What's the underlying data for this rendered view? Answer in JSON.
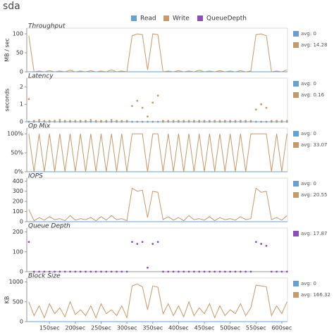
{
  "title": "sda",
  "chart_data": [
    {
      "type": "line",
      "title": "Throughput",
      "ylabel": "MB / sec",
      "xlim": [
        106,
        611
      ],
      "ylim": [
        0,
        115
      ],
      "yticks": [
        0,
        50,
        100
      ],
      "x": [
        110,
        120,
        130,
        140,
        150,
        160,
        170,
        180,
        190,
        200,
        210,
        220,
        230,
        240,
        250,
        260,
        270,
        280,
        290,
        300,
        310,
        320,
        330,
        340,
        350,
        360,
        370,
        380,
        390,
        400,
        410,
        420,
        430,
        440,
        450,
        460,
        470,
        480,
        490,
        500,
        510,
        520,
        530,
        540,
        550,
        560,
        570,
        580,
        590,
        600,
        610
      ],
      "series": [
        {
          "name": "Read",
          "color": "#6a9fd4",
          "avg_label": "avg: 0",
          "values": [
            0,
            0,
            0,
            0,
            0,
            0,
            0,
            0,
            0,
            0,
            0,
            0,
            0,
            0,
            0,
            0,
            0,
            0,
            0,
            0,
            0,
            0,
            0,
            0,
            0,
            0,
            0,
            0,
            0,
            0,
            0,
            0,
            0,
            0,
            0,
            0,
            0,
            0,
            0,
            0,
            0,
            0,
            0,
            0,
            0,
            0,
            0,
            0,
            0,
            0,
            0
          ]
        },
        {
          "name": "Write",
          "color": "#c49a6c",
          "avg_label": "avg: 14.28",
          "values": [
            95,
            0,
            2,
            0,
            3,
            0,
            2,
            0,
            4,
            0,
            2,
            0,
            3,
            0,
            2,
            0,
            5,
            0,
            2,
            0,
            95,
            100,
            98,
            5,
            100,
            98,
            0,
            2,
            0,
            3,
            0,
            2,
            0,
            4,
            0,
            2,
            0,
            3,
            0,
            2,
            0,
            3,
            0,
            2,
            98,
            100,
            95,
            0,
            2,
            0,
            5
          ]
        }
      ]
    },
    {
      "type": "scatter",
      "title": "Latency",
      "ylabel": "seconds",
      "xlim": [
        106,
        611
      ],
      "ylim": [
        0,
        2.5
      ],
      "yticks": [
        0,
        1,
        2
      ],
      "x": [
        110,
        120,
        130,
        140,
        150,
        160,
        170,
        180,
        190,
        200,
        210,
        220,
        230,
        240,
        250,
        260,
        270,
        280,
        290,
        300,
        310,
        320,
        330,
        340,
        350,
        360,
        370,
        380,
        390,
        400,
        410,
        420,
        430,
        440,
        450,
        460,
        470,
        480,
        490,
        500,
        510,
        520,
        530,
        540,
        550,
        560,
        570,
        580,
        590,
        600,
        610
      ],
      "series": [
        {
          "name": "Read",
          "color": "#6a9fd4",
          "avg_label": "avg: 0",
          "values": [
            0,
            0,
            0,
            0,
            0,
            0,
            0,
            0,
            0,
            0,
            0,
            0,
            0,
            0,
            0,
            0,
            0,
            0,
            0,
            0,
            0,
            0,
            0,
            0,
            0,
            0,
            0,
            0,
            0,
            0,
            0,
            0,
            0,
            0,
            0,
            0,
            0,
            0,
            0,
            0,
            0,
            0,
            0,
            0,
            0,
            0,
            0,
            0,
            0,
            0,
            0
          ]
        },
        {
          "name": "Write",
          "color": "#c49a6c",
          "avg_label": "avg: 0.16",
          "values": [
            1.3,
            0.05,
            0.1,
            0.05,
            0.05,
            0.05,
            0.1,
            0.05,
            0.05,
            0.05,
            0.05,
            0.05,
            0.1,
            0.05,
            0.05,
            0.05,
            0.1,
            0.05,
            0.05,
            0.05,
            0.9,
            1.2,
            0.8,
            0.3,
            1.1,
            1.5,
            0.05,
            0.05,
            0.05,
            0.05,
            0.05,
            0.05,
            0.05,
            0.05,
            0.05,
            0.05,
            0.05,
            0.05,
            0.05,
            0.05,
            0.05,
            0.05,
            0.05,
            0.05,
            0.7,
            1.0,
            0.8,
            0.05,
            0.05,
            0.05,
            0.05
          ]
        }
      ]
    },
    {
      "type": "line",
      "title": "Op Mix",
      "xlim": [
        106,
        611
      ],
      "ylim": [
        0,
        115
      ],
      "yticks": [
        {
          "value": 0,
          "label": "0%"
        },
        {
          "value": 50,
          "label": "50%"
        },
        {
          "value": 100,
          "label": "100%"
        }
      ],
      "x": [
        110,
        120,
        130,
        140,
        150,
        160,
        170,
        180,
        190,
        200,
        210,
        220,
        230,
        240,
        250,
        260,
        270,
        280,
        290,
        300,
        310,
        320,
        330,
        340,
        350,
        360,
        370,
        380,
        390,
        400,
        410,
        420,
        430,
        440,
        450,
        460,
        470,
        480,
        490,
        500,
        510,
        520,
        530,
        540,
        550,
        560,
        570,
        580,
        590,
        600,
        610
      ],
      "series": [
        {
          "name": "Read",
          "color": "#6a9fd4",
          "avg_label": "avg: 0",
          "values": [
            0,
            0,
            0,
            0,
            0,
            0,
            0,
            0,
            0,
            0,
            0,
            0,
            0,
            0,
            0,
            0,
            0,
            0,
            0,
            0,
            0,
            0,
            0,
            0,
            0,
            0,
            0,
            0,
            0,
            0,
            0,
            0,
            0,
            0,
            0,
            0,
            0,
            0,
            0,
            0,
            0,
            0,
            0,
            0,
            0,
            0,
            0,
            0,
            0,
            0,
            0
          ]
        },
        {
          "name": "Write",
          "color": "#c49a6c",
          "avg_label": "avg: 33.07",
          "values": [
            100,
            0,
            100,
            0,
            100,
            0,
            100,
            0,
            100,
            0,
            100,
            0,
            100,
            0,
            100,
            0,
            100,
            0,
            100,
            0,
            100,
            100,
            100,
            0,
            100,
            100,
            0,
            100,
            0,
            100,
            0,
            100,
            0,
            100,
            0,
            100,
            0,
            100,
            0,
            100,
            0,
            100,
            0,
            100,
            100,
            100,
            100,
            0,
            100,
            0,
            100
          ]
        }
      ]
    },
    {
      "type": "line",
      "title": "IOPS",
      "xlim": [
        106,
        611
      ],
      "ylim": [
        0,
        430
      ],
      "yticks": [
        0,
        100,
        200,
        300,
        400
      ],
      "x": [
        110,
        120,
        130,
        140,
        150,
        160,
        170,
        180,
        190,
        200,
        210,
        220,
        230,
        240,
        250,
        260,
        270,
        280,
        290,
        300,
        310,
        320,
        330,
        340,
        350,
        360,
        370,
        380,
        390,
        400,
        410,
        420,
        430,
        440,
        450,
        460,
        470,
        480,
        490,
        500,
        510,
        520,
        530,
        540,
        550,
        560,
        570,
        580,
        590,
        600,
        610
      ],
      "series": [
        {
          "name": "Read",
          "color": "#6a9fd4",
          "avg_label": "avg: 0",
          "values": [
            0,
            0,
            0,
            0,
            0,
            0,
            0,
            0,
            0,
            0,
            0,
            0,
            0,
            0,
            0,
            0,
            0,
            0,
            0,
            0,
            0,
            0,
            0,
            0,
            0,
            0,
            0,
            0,
            0,
            0,
            0,
            0,
            0,
            0,
            0,
            0,
            0,
            0,
            0,
            0,
            0,
            0,
            0,
            0,
            0,
            0,
            0,
            0,
            0,
            0,
            0
          ]
        },
        {
          "name": "Write",
          "color": "#c49a6c",
          "avg_label": "avg: 20.55",
          "values": [
            120,
            10,
            40,
            15,
            50,
            20,
            30,
            10,
            60,
            15,
            30,
            20,
            40,
            10,
            50,
            15,
            60,
            20,
            30,
            10,
            330,
            300,
            310,
            40,
            300,
            290,
            20,
            50,
            15,
            40,
            10,
            60,
            20,
            30,
            15,
            50,
            10,
            40,
            20,
            30,
            15,
            50,
            20,
            30,
            330,
            290,
            300,
            20,
            40,
            15,
            60
          ]
        }
      ]
    },
    {
      "type": "scatter",
      "title": "Queue Depth",
      "xlim": [
        106,
        611
      ],
      "ylim": [
        0,
        220
      ],
      "yticks": [
        0,
        100,
        200
      ],
      "x": [
        110,
        120,
        130,
        140,
        150,
        160,
        170,
        180,
        190,
        200,
        210,
        220,
        230,
        240,
        250,
        260,
        270,
        280,
        290,
        300,
        310,
        320,
        330,
        340,
        350,
        360,
        370,
        380,
        390,
        400,
        410,
        420,
        430,
        440,
        450,
        460,
        470,
        480,
        490,
        500,
        510,
        520,
        530,
        540,
        550,
        560,
        570,
        580,
        590,
        600,
        610
      ],
      "series": [
        {
          "name": "QueueDepth",
          "color": "#8b4fb8",
          "avg_label": "avg: 17.87",
          "values": [
            150,
            0,
            0,
            0,
            0,
            0,
            0,
            0,
            0,
            0,
            0,
            0,
            0,
            0,
            0,
            0,
            0,
            0,
            0,
            0,
            150,
            140,
            150,
            20,
            140,
            150,
            0,
            0,
            0,
            0,
            0,
            0,
            0,
            0,
            0,
            0,
            0,
            0,
            0,
            0,
            0,
            0,
            0,
            0,
            150,
            140,
            130,
            0,
            0,
            0,
            0
          ]
        }
      ]
    },
    {
      "type": "line",
      "title": "Block Size",
      "ylabel": "KB",
      "xlim": [
        106,
        611
      ],
      "ylim": [
        0,
        1100
      ],
      "yticks": [
        0,
        500,
        1000
      ],
      "xticks": [
        {
          "value": 150,
          "label": "150sec"
        },
        {
          "value": 200,
          "label": "200sec"
        },
        {
          "value": 250,
          "label": "250sec"
        },
        {
          "value": 300,
          "label": "300sec"
        },
        {
          "value": 350,
          "label": "350sec"
        },
        {
          "value": 400,
          "label": "400sec"
        },
        {
          "value": 450,
          "label": "450sec"
        },
        {
          "value": 500,
          "label": "500sec"
        },
        {
          "value": 550,
          "label": "550sec"
        },
        {
          "value": 600,
          "label": "600sec"
        }
      ],
      "x": [
        110,
        120,
        130,
        140,
        150,
        160,
        170,
        180,
        190,
        200,
        210,
        220,
        230,
        240,
        250,
        260,
        270,
        280,
        290,
        300,
        310,
        320,
        330,
        340,
        350,
        360,
        370,
        380,
        390,
        400,
        410,
        420,
        430,
        440,
        450,
        460,
        470,
        480,
        490,
        500,
        510,
        520,
        530,
        540,
        550,
        560,
        570,
        580,
        590,
        600,
        610
      ],
      "series": [
        {
          "name": "Read",
          "color": "#6a9fd4",
          "avg_label": "avg: 0",
          "values": [
            0,
            0,
            0,
            0,
            0,
            0,
            0,
            0,
            0,
            0,
            0,
            0,
            0,
            0,
            0,
            0,
            0,
            0,
            0,
            0,
            0,
            0,
            0,
            0,
            0,
            0,
            0,
            0,
            0,
            0,
            0,
            0,
            0,
            0,
            0,
            0,
            0,
            0,
            0,
            0,
            0,
            0,
            0,
            0,
            0,
            0,
            0,
            0,
            0,
            0,
            0
          ]
        },
        {
          "name": "Write",
          "color": "#c49a6c",
          "avg_label": "avg: 166.32",
          "values": [
            500,
            150,
            400,
            100,
            450,
            200,
            350,
            120,
            500,
            180,
            300,
            150,
            400,
            100,
            450,
            200,
            300,
            150,
            400,
            100,
            900,
            950,
            880,
            300,
            900,
            870,
            200,
            450,
            150,
            400,
            120,
            500,
            150,
            350,
            200,
            450,
            100,
            400,
            150,
            300,
            200,
            450,
            150,
            350,
            920,
            900,
            880,
            150,
            400,
            200,
            500
          ]
        }
      ]
    }
  ]
}
